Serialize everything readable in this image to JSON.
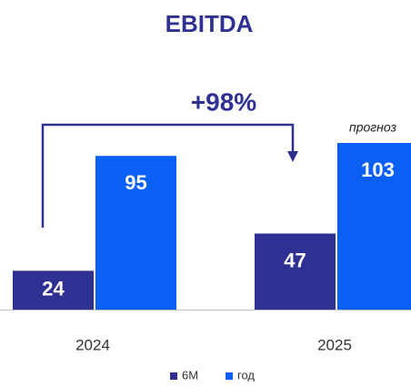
{
  "chart_data": {
    "type": "bar",
    "title": "EBITDA",
    "categories": [
      "2024",
      "2025"
    ],
    "series": [
      {
        "name": "6M",
        "color": "#2e3192",
        "values": [
          24,
          47
        ]
      },
      {
        "name": "год",
        "color": "#0a5ff5",
        "values": [
          95,
          103
        ]
      }
    ],
    "annotation": "+98%",
    "forecast_label": "прогноз"
  }
}
